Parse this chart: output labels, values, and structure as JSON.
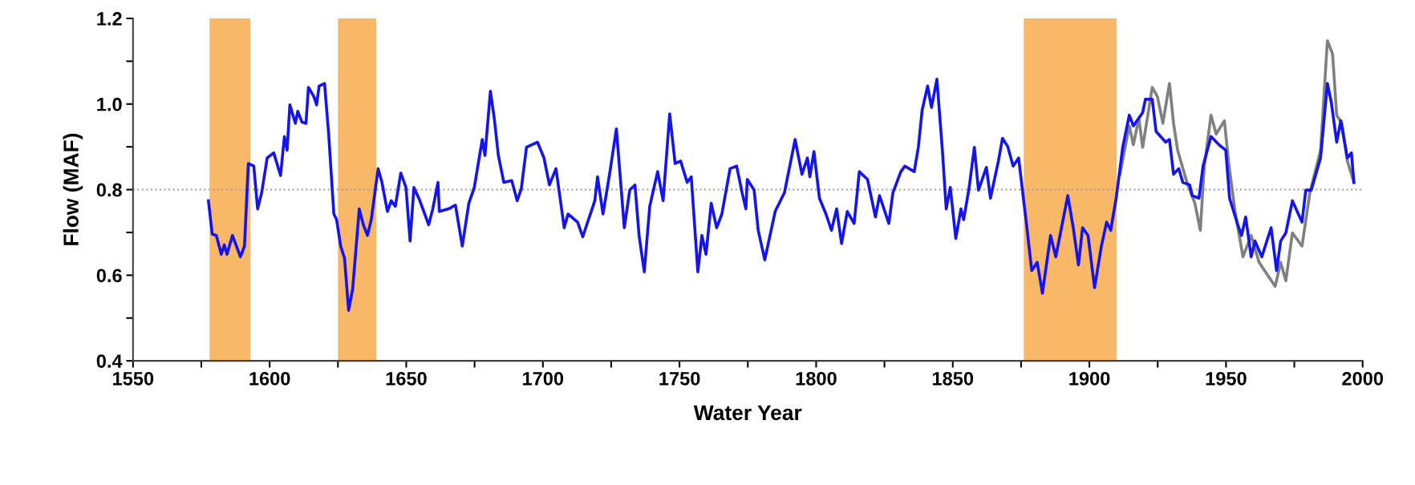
{
  "chart_data": {
    "type": "line",
    "xlabel": "Water Year",
    "ylabel": "Flow (MAF)",
    "xlim": [
      1550,
      2000
    ],
    "xticks": [
      1550,
      {
        "value": 1575,
        "label": null
      },
      1600,
      {
        "value": 1625,
        "label": null
      },
      1650,
      {
        "value": 1675,
        "label": null
      },
      1700,
      {
        "value": 1725,
        "label": null
      },
      1750,
      {
        "value": 1775,
        "label": null
      },
      1800,
      {
        "value": 1825,
        "label": null
      },
      1850,
      {
        "value": 1875,
        "label": null
      },
      1900,
      {
        "value": 1925,
        "label": null
      },
      1950,
      {
        "value": 1975,
        "label": null
      },
      2000
    ],
    "ylim": [
      0.4,
      1.2
    ],
    "yticks": [
      {
        "value": 0.4,
        "label": "0.4"
      },
      {
        "value": 0.5,
        "label": null
      },
      {
        "value": 0.6,
        "label": "0.6"
      },
      {
        "value": 0.7,
        "label": null
      },
      {
        "value": 0.8,
        "label": "0.8"
      },
      {
        "value": 0.9,
        "label": null
      },
      {
        "value": 1.0,
        "label": "1.0"
      },
      {
        "value": 1.1,
        "label": null
      },
      {
        "value": 1.2,
        "label": "1.2"
      }
    ],
    "grid": false,
    "legend": false,
    "marker": "none",
    "line_style": "solid",
    "ref_lines": [
      {
        "axis": "y",
        "value": 0.8,
        "color": "#a0a0a0",
        "line_style": "dotted"
      }
    ],
    "bands": [
      {
        "axis": "x",
        "from": 1578,
        "to": 1593,
        "color": "#f8b868"
      },
      {
        "axis": "x",
        "from": 1625,
        "to": 1639,
        "color": "#f8b868"
      },
      {
        "axis": "x",
        "from": 1876,
        "to": 1910,
        "color": "#f8b868"
      }
    ],
    "series": [
      {
        "color": "#808080",
        "x": [
          1911.2,
          1914.6,
          1916.1,
          1918.1,
          1919.5,
          1923,
          1924.9,
          1926.9,
          1929.3,
          1930.8,
          1932.3,
          1935.7,
          1938.6,
          1940.6,
          1942.05,
          1944.5,
          1946.4,
          1949.4,
          1950.9,
          1953.3,
          1956.2,
          1959.2,
          1962.1,
          1968,
          1970,
          1971.9,
          1974.3,
          1977.8,
          1980.7,
          1984.6,
          1987.1,
          1989,
          1990.5,
          1992.4,
          1994.4,
          1996.8
        ],
        "values": [
          0.836,
          0.949,
          0.905,
          0.967,
          0.899,
          1.039,
          1.017,
          0.955,
          1.048,
          0.955,
          0.892,
          0.817,
          0.768,
          0.705,
          0.855,
          0.974,
          0.93,
          0.961,
          0.867,
          0.749,
          0.643,
          0.693,
          0.63,
          0.574,
          0.63,
          0.587,
          0.699,
          0.668,
          0.793,
          0.892,
          1.148,
          1.117,
          0.974,
          0.955,
          0.867,
          0.817
        ]
      },
      {
        "color": "#1414f0",
        "x": [
          1577.6,
          1579,
          1580.5,
          1582.3,
          1583.4,
          1584.4,
          1586.4,
          1589.3,
          1590.8,
          1592.2,
          1594.2,
          1595.6,
          1597.1,
          1599.1,
          1601.5,
          1604,
          1605.4,
          1606.4,
          1607.4,
          1609.4,
          1610.3,
          1611.8,
          1613.3,
          1614.2,
          1616.2,
          1617.2,
          1618.1,
          1620.1,
          1621.6,
          1623.5,
          1624.5,
          1626,
          1627.4,
          1628.9,
          1630.4,
          1632.8,
          1634.3,
          1635.8,
          1637.2,
          1639.7,
          1641.1,
          1643.1,
          1644.5,
          1646,
          1648,
          1649.9,
          1651.4,
          1652.8,
          1654.8,
          1658.2,
          1659.7,
          1661.6,
          1662.1,
          1665.5,
          1668,
          1670.5,
          1672.9,
          1674.9,
          1677.8,
          1678.8,
          1680.8,
          1682.2,
          1683.7,
          1685.7,
          1688.6,
          1690.6,
          1692.1,
          1694,
          1698,
          1700.4,
          1702.4,
          1704.8,
          1707.8,
          1709.2,
          1712.7,
          1714.6,
          1719,
          1720,
          1722,
          1724.4,
          1726.9,
          1729.8,
          1731.8,
          1733.7,
          1735.2,
          1737.1,
          1739.1,
          1742,
          1744,
          1746.4,
          1748.4,
          1750.4,
          1752.8,
          1754.3,
          1756.7,
          1758.2,
          1759.7,
          1761.6,
          1763.6,
          1765.5,
          1768.5,
          1770.9,
          1772.9,
          1774.3,
          1774.8,
          1777.3,
          1778.8,
          1781.2,
          1785,
          1788.4,
          1792.3,
          1794.8,
          1796.8,
          1797.7,
          1799.2,
          1801.2,
          1803.6,
          1805.6,
          1807.5,
          1809.3,
          1811.4,
          1813.9,
          1815.8,
          1818.8,
          1821.7,
          1823.2,
          1826.6,
          1828.1,
          1831,
          1832.5,
          1835.9,
          1837.4,
          1838.8,
          1840.8,
          1842.2,
          1844.2,
          1846.2,
          1847.6,
          1849.1,
          1851.1,
          1853,
          1854,
          1856,
          1857.9,
          1859.4,
          1862.3,
          1863.8,
          1866.7,
          1868.2,
          1870.1,
          1872.1,
          1874.1,
          1877,
          1878.9,
          1880.9,
          1882.8,
          1885.8,
          1887.7,
          1892.1,
          1894.1,
          1896,
          1897.5,
          1899.5,
          1901.9,
          1904.4,
          1906.3,
          1907.8,
          1909.8,
          1912.2,
          1914.6,
          1916.1,
          1919.5,
          1920.5,
          1923,
          1924.4,
          1927.9,
          1929.3,
          1930.8,
          1932.7,
          1934.2,
          1936.7,
          1937.6,
          1940.1,
          1941.6,
          1944.5,
          1947.4,
          1949.9,
          1951.3,
          1954.3,
          1955.7,
          1957.2,
          1959.2,
          1960.6,
          1963.1,
          1966.5,
          1968.5,
          1970,
          1971.9,
          1974.3,
          1977.8,
          1979.2,
          1981.2,
          1984.6,
          1987.1,
          1988.5,
          1990.5,
          1992,
          1994.4,
          1995.9,
          1996.8
        ],
        "values": [
          0.774,
          0.696,
          0.693,
          0.649,
          0.671,
          0.649,
          0.693,
          0.643,
          0.668,
          0.861,
          0.855,
          0.755,
          0.793,
          0.874,
          0.886,
          0.833,
          0.924,
          0.892,
          0.998,
          0.955,
          0.983,
          0.958,
          0.955,
          1.039,
          1.017,
          0.998,
          1.042,
          1.048,
          0.93,
          0.743,
          0.73,
          0.668,
          0.64,
          0.518,
          0.568,
          0.755,
          0.718,
          0.693,
          0.73,
          0.849,
          0.817,
          0.749,
          0.774,
          0.761,
          0.839,
          0.805,
          0.68,
          0.805,
          0.777,
          0.718,
          0.755,
          0.817,
          0.749,
          0.755,
          0.764,
          0.668,
          0.768,
          0.805,
          0.917,
          0.88,
          1.03,
          0.967,
          0.88,
          0.817,
          0.821,
          0.774,
          0.802,
          0.899,
          0.911,
          0.874,
          0.811,
          0.849,
          0.711,
          0.743,
          0.724,
          0.69,
          0.774,
          0.83,
          0.743,
          0.836,
          0.942,
          0.711,
          0.799,
          0.811,
          0.693,
          0.608,
          0.761,
          0.842,
          0.774,
          0.977,
          0.861,
          0.867,
          0.817,
          0.83,
          0.608,
          0.693,
          0.649,
          0.768,
          0.711,
          0.743,
          0.849,
          0.855,
          0.793,
          0.755,
          0.824,
          0.799,
          0.705,
          0.636,
          0.749,
          0.793,
          0.917,
          0.836,
          0.874,
          0.83,
          0.889,
          0.78,
          0.743,
          0.705,
          0.755,
          0.674,
          0.749,
          0.721,
          0.842,
          0.824,
          0.736,
          0.786,
          0.721,
          0.793,
          0.842,
          0.855,
          0.842,
          0.899,
          0.986,
          1.042,
          0.992,
          1.058,
          0.892,
          0.755,
          0.805,
          0.686,
          0.755,
          0.73,
          0.805,
          0.899,
          0.799,
          0.852,
          0.78,
          0.867,
          0.92,
          0.901,
          0.855,
          0.874,
          0.718,
          0.611,
          0.63,
          0.558,
          0.693,
          0.643,
          0.786,
          0.711,
          0.624,
          0.711,
          0.693,
          0.571,
          0.668,
          0.724,
          0.705,
          0.78,
          0.899,
          0.974,
          0.949,
          0.98,
          1.011,
          1.011,
          0.936,
          0.911,
          0.917,
          0.836,
          0.849,
          0.817,
          0.811,
          0.786,
          0.78,
          0.855,
          0.924,
          0.905,
          0.892,
          0.78,
          0.718,
          0.693,
          0.736,
          0.643,
          0.68,
          0.643,
          0.711,
          0.611,
          0.68,
          0.699,
          0.774,
          0.724,
          0.799,
          0.799,
          0.874,
          1.048,
          1.005,
          0.911,
          0.961,
          0.874,
          0.886,
          0.817
        ]
      }
    ]
  }
}
